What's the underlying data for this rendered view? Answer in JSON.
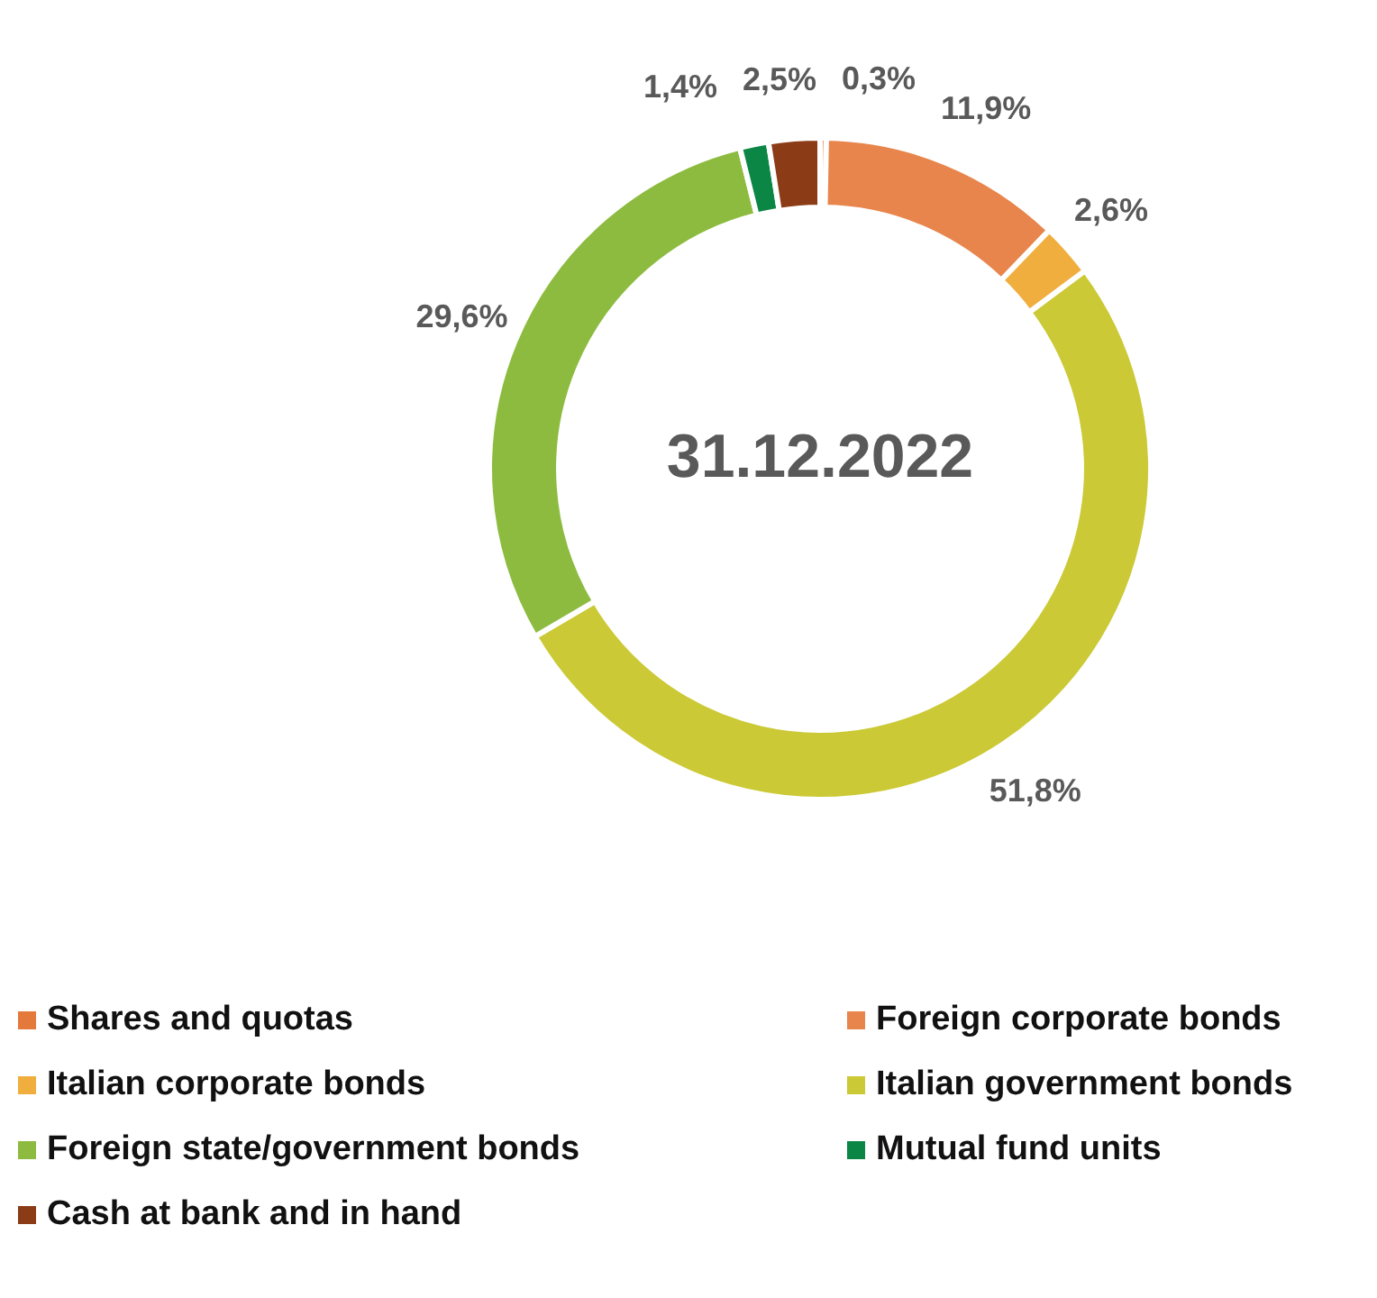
{
  "chart_data": {
    "type": "donut",
    "title": "31.12.2022",
    "categories": [
      "Shares and quotas",
      "Foreign corporate bonds",
      "Italian corporate bonds",
      "Italian government bonds",
      "Foreign state/government bonds",
      "Mutual fund units",
      "Cash at bank and in hand"
    ],
    "values": [
      0.3,
      11.9,
      2.6,
      51.8,
      29.6,
      1.4,
      2.5
    ],
    "value_labels": [
      "0,3%",
      "11,9%",
      "2,6%",
      "51,8%",
      "29,6%",
      "1,4%",
      "2,5%"
    ],
    "colors": [
      "#e4793c",
      "#e8854c",
      "#f0ae3e",
      "#cbc935",
      "#8dbb3f",
      "#0c8645",
      "#8c3b17"
    ],
    "legend": "bottom"
  }
}
